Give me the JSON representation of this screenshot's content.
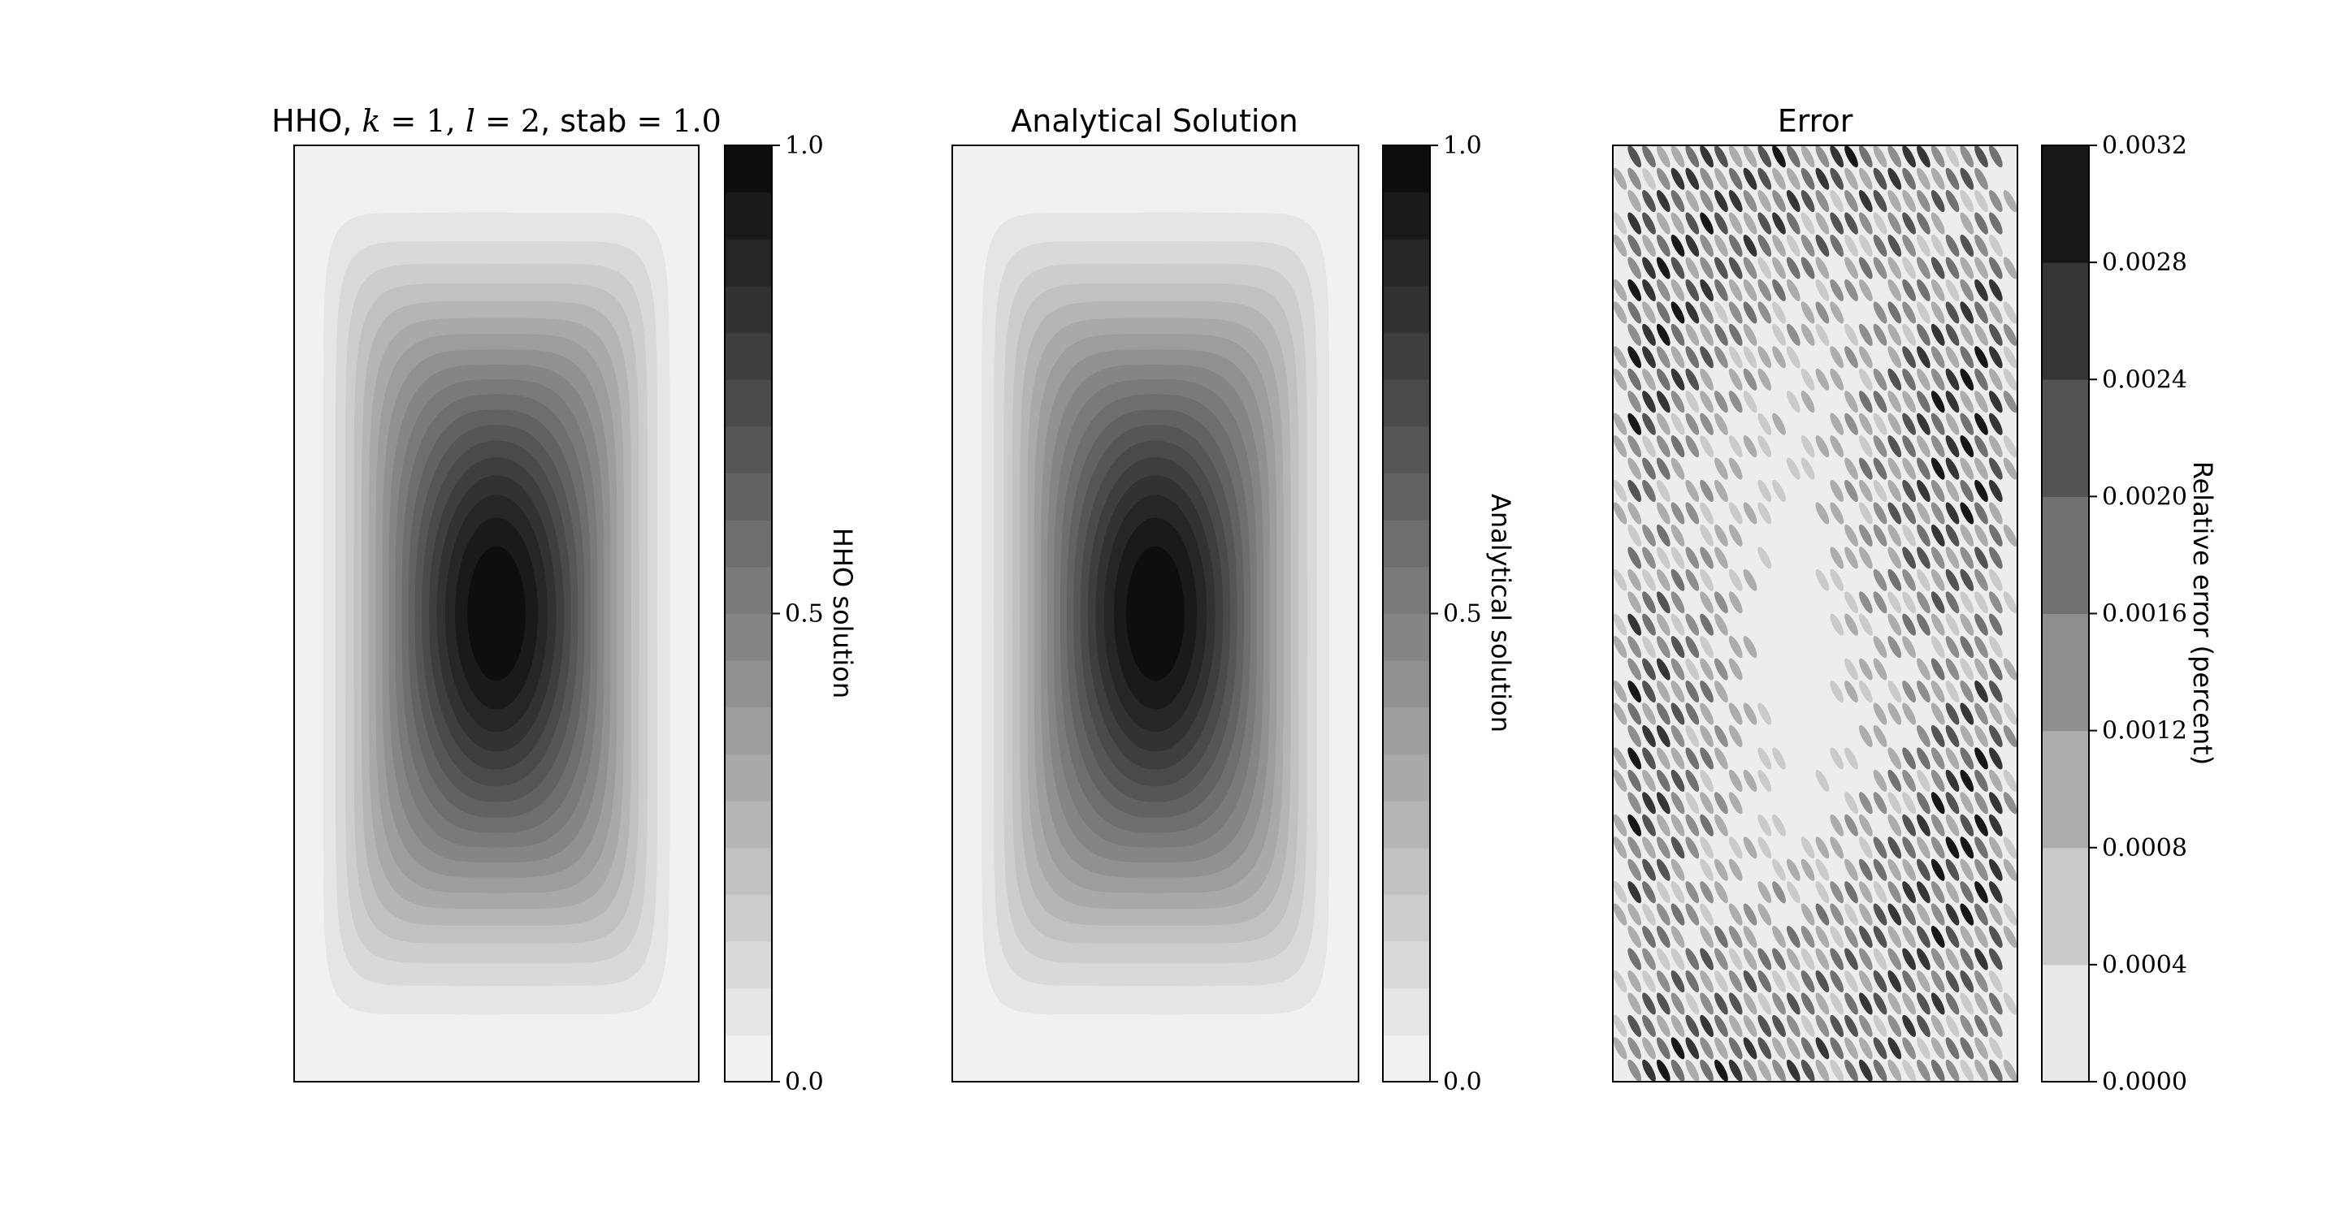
{
  "chart_data": [
    {
      "type": "contour",
      "title": {
        "prefix": "HHO, ",
        "k_sym": "k",
        "eq1": " = 1, ",
        "l_sym": "l",
        "eq2": " = 2",
        "stab_word": ", stab",
        "eq3": " = 1.0"
      },
      "field": "sin(pi*x)*sin(pi*y) on [0,1]x[0,1]",
      "levels": 20,
      "zlim": [
        0.0,
        1.0
      ],
      "colormap": "Greys",
      "colorbar": {
        "label": "HHO solution",
        "ticks": [
          "0.0",
          "0.5",
          "1.0"
        ],
        "tick_values": [
          0.0,
          0.5,
          1.0
        ]
      }
    },
    {
      "type": "contour",
      "title": "Analytical Solution",
      "field": "sin(pi*x)*sin(pi*y) on [0,1]x[0,1]",
      "levels": 20,
      "zlim": [
        0.0,
        1.0
      ],
      "colormap": "Greys",
      "colorbar": {
        "label": "Analytical solution",
        "ticks": [
          "0.0",
          "0.5",
          "1.0"
        ],
        "tick_values": [
          0.0,
          0.5,
          1.0
        ]
      }
    },
    {
      "type": "contour",
      "title": "Error",
      "field": "oscillatory relative error",
      "levels": 8,
      "zlim": [
        0.0,
        0.0032
      ],
      "colormap": "Greys",
      "colorbar": {
        "label": "Relative error (percent)",
        "ticks": [
          "0.0000",
          "0.0004",
          "0.0008",
          "0.0012",
          "0.0016",
          "0.0020",
          "0.0024",
          "0.0028",
          "0.0032"
        ],
        "tick_values": [
          0.0,
          0.0004,
          0.0008,
          0.0012,
          0.0016,
          0.002,
          0.0024,
          0.0028,
          0.0032
        ]
      }
    }
  ]
}
